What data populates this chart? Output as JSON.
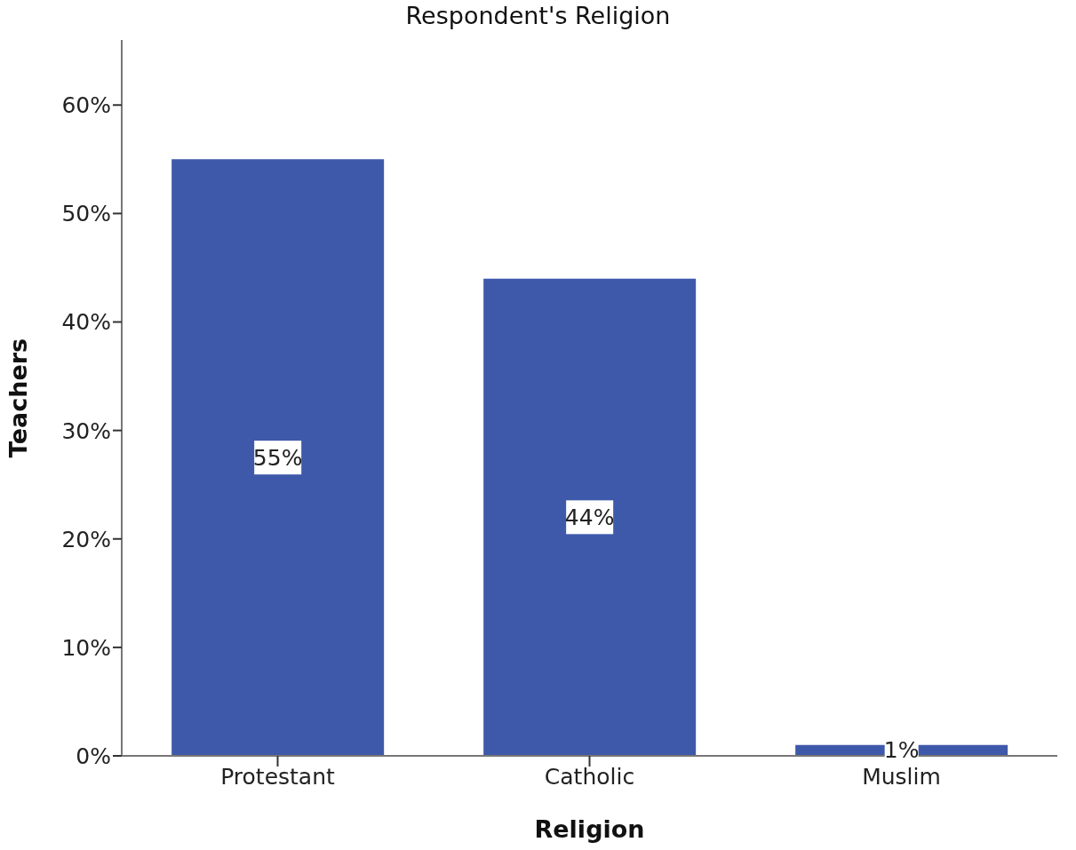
{
  "chart_data": {
    "type": "bar",
    "title": "Respondent's Religion",
    "xlabel": "Religion",
    "ylabel": "Teachers",
    "categories": [
      "Protestant",
      "Catholic",
      "Muslim"
    ],
    "values": [
      55,
      44,
      1
    ],
    "value_labels": [
      "55%",
      "44%",
      "1%"
    ],
    "color": "#3f59aa",
    "ylim": [
      0,
      66
    ],
    "yticks": [
      {
        "value": 0,
        "label": "0%"
      },
      {
        "value": 10,
        "label": "10%"
      },
      {
        "value": 20,
        "label": "20%"
      },
      {
        "value": 30,
        "label": "30%"
      },
      {
        "value": 40,
        "label": "40%"
      },
      {
        "value": 50,
        "label": "50%"
      },
      {
        "value": 60,
        "label": "60%"
      }
    ],
    "grid": false,
    "legend": false
  }
}
